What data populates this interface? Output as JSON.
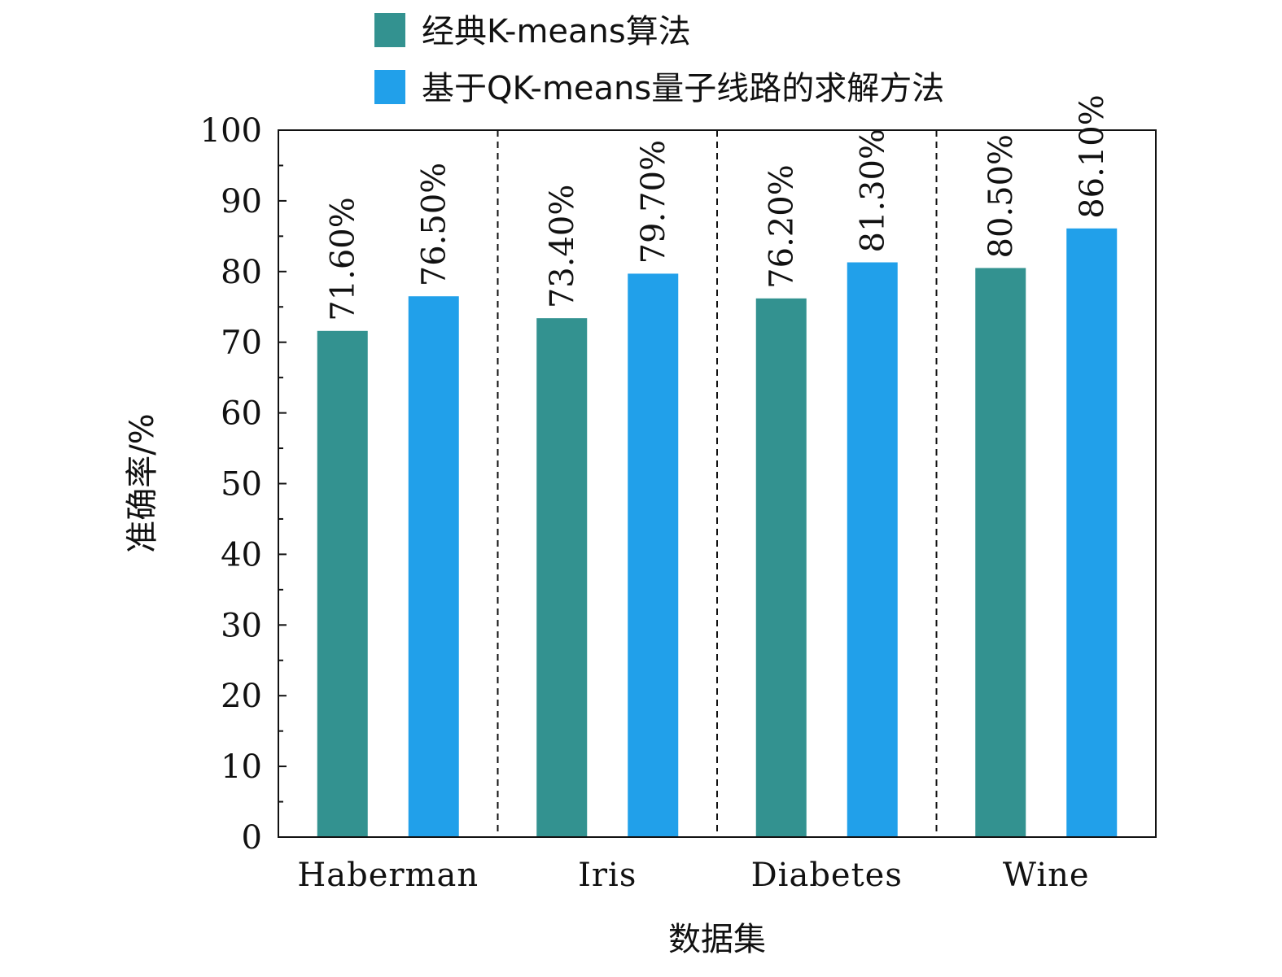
{
  "chart_data": {
    "type": "bar",
    "categories": [
      "Haberman",
      "Iris",
      "Diabetes",
      "Wine"
    ],
    "series": [
      {
        "name": "经典K-means算法",
        "values": [
          71.6,
          73.4,
          76.2,
          80.5
        ],
        "labels": [
          "71.60%",
          "73.40%",
          "76.20%",
          "80.50%"
        ],
        "color": "#339290"
      },
      {
        "name": "基于QK-means量子线路的求解方法",
        "values": [
          76.5,
          79.7,
          81.3,
          86.1
        ],
        "labels": [
          "76.50%",
          "79.70%",
          "81.30%",
          "86.10%"
        ],
        "color": "#21a0ea"
      }
    ],
    "xlabel": "数据集",
    "ylabel": "准确率/%",
    "ylim": [
      0,
      100
    ],
    "yticks": [
      "0",
      "10",
      "20",
      "30",
      "40",
      "50",
      "60",
      "70",
      "80",
      "90",
      "100"
    ],
    "legend_position": "top",
    "group_separators": "dashed",
    "grid": false
  }
}
